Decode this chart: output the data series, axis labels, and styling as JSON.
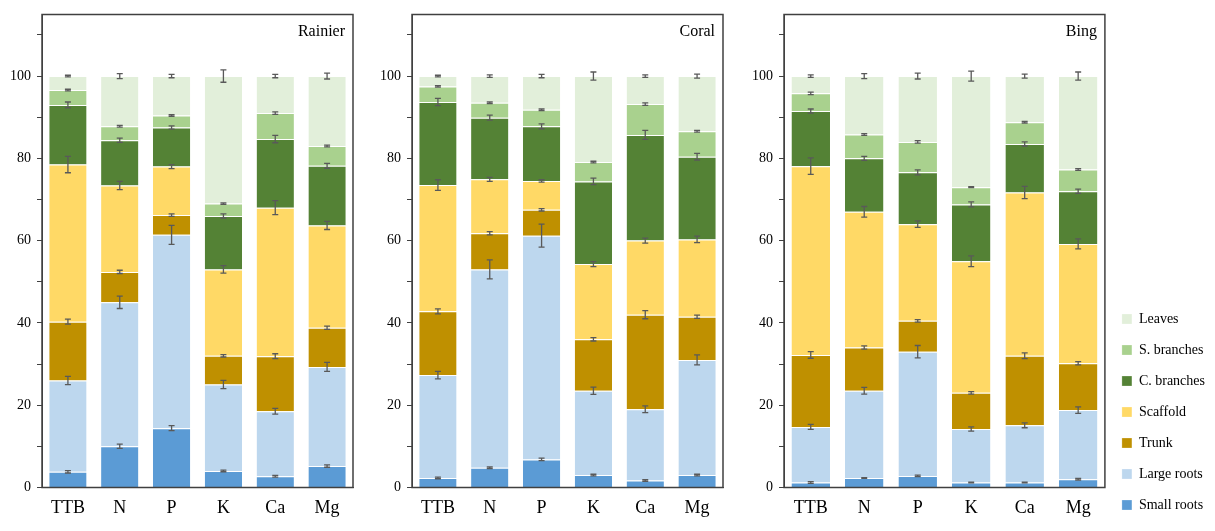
{
  "chart_data": [
    {
      "type": "bar",
      "title": "Rainier",
      "stacked": true,
      "grid": false,
      "legend": false,
      "categories": [
        "TTB",
        "N",
        "P",
        "K",
        "Ca",
        "Mg"
      ],
      "ylim": [
        0,
        115
      ],
      "yticks": [
        0,
        {
          "value": 10,
          "label": null
        },
        20,
        {
          "value": 30,
          "label": null
        },
        40,
        {
          "value": 50,
          "label": null
        },
        60,
        {
          "value": 70,
          "label": null
        },
        80,
        {
          "value": 90,
          "label": null
        },
        100,
        {
          "value": 110,
          "label": null
        }
      ],
      "series": [
        {
          "color": "#5b9bd5",
          "values": [
            3.8,
            10,
            14.4,
            4,
            2.7,
            5.2
          ],
          "errors": [
            0.3,
            0.5,
            0.6,
            0.2,
            0.2,
            0.3
          ]
        },
        {
          "color": "#bdd7ee",
          "values": [
            22.2,
            35,
            47,
            21,
            15.8,
            24.1
          ],
          "errors": [
            1,
            1.5,
            2.3,
            1,
            0.7,
            1.1
          ]
        },
        {
          "color": "#bf9000",
          "values": [
            14.3,
            7.4,
            4.8,
            7,
            13.4,
            9.5
          ],
          "errors": [
            0.6,
            0.4,
            0.3,
            0.3,
            0.6,
            0.4
          ]
        },
        {
          "color": "#ffd966",
          "values": [
            38.2,
            21,
            11.8,
            21,
            36.1,
            24.9
          ],
          "errors": [
            2,
            1,
            0.5,
            0.9,
            1.7,
            1
          ]
        },
        {
          "color": "#548235",
          "values": [
            14.5,
            11,
            9.5,
            13,
            16.7,
            14.5
          ],
          "errors": [
            0.7,
            0.5,
            0.4,
            0.5,
            0.9,
            0.6
          ]
        },
        {
          "color": "#a9d18e",
          "values": [
            3.6,
            3.4,
            2.9,
            3,
            6.3,
            4.8
          ],
          "errors": [
            0.2,
            0.2,
            0.2,
            0.2,
            0.3,
            0.2
          ]
        },
        {
          "color": "#e2efda",
          "values": [
            3.4,
            12.2,
            9.6,
            31,
            9,
            17
          ],
          "errors": [
            0.2,
            0.6,
            0.4,
            1.5,
            0.4,
            0.7
          ]
        }
      ]
    },
    {
      "type": "bar",
      "title": "Coral",
      "stacked": true,
      "grid": false,
      "legend": false,
      "categories": [
        "TTB",
        "N",
        "P",
        "K",
        "Ca",
        "Mg"
      ],
      "ylim": [
        0,
        115
      ],
      "yticks": [
        0,
        {
          "value": 10,
          "label": null
        },
        20,
        {
          "value": 30,
          "label": null
        },
        40,
        {
          "value": 50,
          "label": null
        },
        60,
        {
          "value": 70,
          "label": null
        },
        80,
        {
          "value": 90,
          "label": null
        },
        100,
        {
          "value": 110,
          "label": null
        }
      ],
      "series": [
        {
          "color": "#5b9bd5",
          "values": [
            2.3,
            4.8,
            6.8,
            3,
            1.7,
            3
          ],
          "errors": [
            0.2,
            0.2,
            0.3,
            0.2,
            0.2,
            0.2
          ]
        },
        {
          "color": "#bdd7ee",
          "values": [
            25,
            48.2,
            54.4,
            20.5,
            17.3,
            28
          ],
          "errors": [
            0.9,
            2.3,
            2.8,
            0.9,
            0.8,
            1.2
          ]
        },
        {
          "color": "#bf9000",
          "values": [
            15.5,
            8.8,
            6.3,
            12.5,
            23,
            10.5
          ],
          "errors": [
            0.6,
            0.4,
            0.3,
            0.4,
            1,
            0.4
          ]
        },
        {
          "color": "#ffd966",
          "values": [
            30.7,
            13.1,
            7,
            18.3,
            18,
            18.8
          ],
          "errors": [
            1.3,
            0.5,
            0.3,
            0.6,
            0.6,
            0.8
          ]
        },
        {
          "color": "#548235",
          "values": [
            20.2,
            15,
            13.3,
            20.1,
            25.7,
            20.1
          ],
          "errors": [
            0.9,
            0.6,
            0.6,
            0.8,
            1.1,
            0.8
          ]
        },
        {
          "color": "#a9d18e",
          "values": [
            3.8,
            3.6,
            4,
            4.7,
            7.5,
            6.2
          ],
          "errors": [
            0.2,
            0.2,
            0.2,
            0.2,
            0.3,
            0.2
          ]
        },
        {
          "color": "#e2efda",
          "values": [
            2.5,
            6.5,
            8.2,
            20.9,
            6.8,
            13.4
          ],
          "errors": [
            0.2,
            0.3,
            0.4,
            1,
            0.3,
            0.5
          ]
        }
      ]
    },
    {
      "type": "bar",
      "title": "Bing",
      "stacked": true,
      "grid": false,
      "legend": "right",
      "categories": [
        "TTB",
        "N",
        "P",
        "K",
        "Ca",
        "Mg"
      ],
      "ylim": [
        0,
        115
      ],
      "yticks": [
        0,
        {
          "value": 10,
          "label": null
        },
        20,
        {
          "value": 30,
          "label": null
        },
        40,
        {
          "value": 50,
          "label": null
        },
        60,
        {
          "value": 70,
          "label": null
        },
        80,
        {
          "value": 90,
          "label": null
        },
        100,
        {
          "value": 110,
          "label": null
        }
      ],
      "series": [
        {
          "name": "Small roots",
          "color": "#5b9bd5",
          "values": [
            1.2,
            2.3,
            2.8,
            1.2,
            1.2,
            2
          ],
          "errors": [
            0.2,
            0.1,
            0.2,
            0.1,
            0.1,
            0.2
          ]
        },
        {
          "name": "Large roots",
          "color": "#bdd7ee",
          "values": [
            13.5,
            21.2,
            30.2,
            13,
            13.9,
            16.8
          ],
          "errors": [
            0.6,
            0.8,
            1.5,
            0.5,
            0.6,
            0.8
          ]
        },
        {
          "name": "Trunk",
          "color": "#bf9000",
          "values": [
            17.5,
            10.5,
            7.5,
            8.8,
            16.9,
            11.4
          ],
          "errors": [
            0.8,
            0.4,
            0.3,
            0.3,
            0.7,
            0.4
          ]
        },
        {
          "name": "Scaffold",
          "color": "#ffd966",
          "values": [
            45.9,
            33,
            23.5,
            32,
            39.7,
            29
          ],
          "errors": [
            2,
            1.3,
            0.8,
            1.3,
            1.5,
            1.2
          ]
        },
        {
          "name": "C. branches",
          "color": "#548235",
          "values": [
            13.4,
            13,
            12.6,
            13.8,
            11.8,
            12.8
          ],
          "errors": [
            0.5,
            0.5,
            0.6,
            0.6,
            0.5,
            0.5
          ]
        },
        {
          "name": "S. branches",
          "color": "#a9d18e",
          "values": [
            4.3,
            5.8,
            7.4,
            4.2,
            5.3,
            5.3
          ],
          "errors": [
            0.3,
            0.2,
            0.3,
            0.1,
            0.2,
            0.2
          ]
        },
        {
          "name": "Leaves",
          "color": "#e2efda",
          "values": [
            4.2,
            14.2,
            16,
            27,
            11.2,
            22.7
          ],
          "errors": [
            0.3,
            0.6,
            0.7,
            1.2,
            0.5,
            1
          ]
        }
      ]
    }
  ]
}
